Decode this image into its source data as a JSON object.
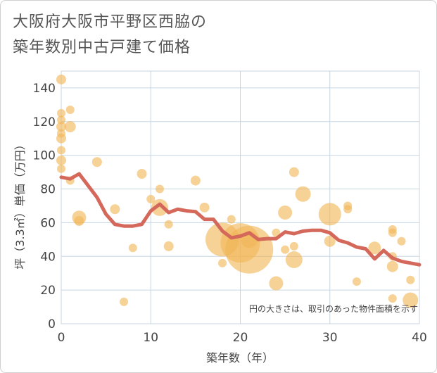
{
  "chart_data": {
    "type": "scatter",
    "title": "大阪府大阪市平野区西脇の築年数別中古戸建て価格",
    "title_lines": [
      "大阪府大阪市平野区西脇の",
      "築年数別中古戸建て価格"
    ],
    "xlabel": "築年数（年）",
    "ylabel": "坪（3.3㎡）単価（万円）",
    "xlim": [
      0,
      40
    ],
    "ylim": [
      0,
      150
    ],
    "xticks": [
      0,
      10,
      20,
      30,
      40
    ],
    "yticks": [
      0,
      20,
      40,
      60,
      80,
      100,
      120,
      140
    ],
    "grid": true,
    "annotation": "円の大きさは、取引のあった物件面積を示す",
    "bubble_color": "#f0b757",
    "line_color": "#d4685a",
    "bubbles": [
      {
        "x": 0,
        "y": 145,
        "s": 7
      },
      {
        "x": 0,
        "y": 125,
        "s": 6
      },
      {
        "x": 0,
        "y": 121,
        "s": 6
      },
      {
        "x": 0,
        "y": 117,
        "s": 7
      },
      {
        "x": 0,
        "y": 113,
        "s": 6
      },
      {
        "x": 0,
        "y": 110,
        "s": 7
      },
      {
        "x": 0,
        "y": 103,
        "s": 6
      },
      {
        "x": 0,
        "y": 97,
        "s": 7
      },
      {
        "x": 0,
        "y": 92,
        "s": 6
      },
      {
        "x": 1,
        "y": 127,
        "s": 6
      },
      {
        "x": 1,
        "y": 117,
        "s": 8
      },
      {
        "x": 1,
        "y": 85,
        "s": 6
      },
      {
        "x": 2,
        "y": 63,
        "s": 10
      },
      {
        "x": 2,
        "y": 61,
        "s": 7
      },
      {
        "x": 4,
        "y": 96,
        "s": 7
      },
      {
        "x": 6,
        "y": 68,
        "s": 7
      },
      {
        "x": 7,
        "y": 13,
        "s": 6
      },
      {
        "x": 8,
        "y": 45,
        "s": 6
      },
      {
        "x": 9,
        "y": 89,
        "s": 7
      },
      {
        "x": 10,
        "y": 74,
        "s": 6
      },
      {
        "x": 11,
        "y": 80,
        "s": 6
      },
      {
        "x": 11,
        "y": 69,
        "s": 12
      },
      {
        "x": 12,
        "y": 59,
        "s": 6
      },
      {
        "x": 12,
        "y": 46,
        "s": 7
      },
      {
        "x": 15,
        "y": 85,
        "s": 7
      },
      {
        "x": 16,
        "y": 69,
        "s": 7
      },
      {
        "x": 18,
        "y": 50,
        "s": 24
      },
      {
        "x": 18,
        "y": 36,
        "s": 6
      },
      {
        "x": 19,
        "y": 62,
        "s": 6
      },
      {
        "x": 20,
        "y": 48,
        "s": 28
      },
      {
        "x": 21,
        "y": 44,
        "s": 34
      },
      {
        "x": 21,
        "y": 50,
        "s": 12
      },
      {
        "x": 24,
        "y": 54,
        "s": 6
      },
      {
        "x": 24,
        "y": 24,
        "s": 10
      },
      {
        "x": 25,
        "y": 66,
        "s": 10
      },
      {
        "x": 25,
        "y": 44,
        "s": 6
      },
      {
        "x": 26,
        "y": 90,
        "s": 7
      },
      {
        "x": 26,
        "y": 46,
        "s": 6
      },
      {
        "x": 26,
        "y": 38,
        "s": 12
      },
      {
        "x": 27,
        "y": 77,
        "s": 11
      },
      {
        "x": 30,
        "y": 65,
        "s": 16
      },
      {
        "x": 30,
        "y": 49,
        "s": 8
      },
      {
        "x": 32,
        "y": 70,
        "s": 6
      },
      {
        "x": 32,
        "y": 68,
        "s": 6
      },
      {
        "x": 33,
        "y": 25,
        "s": 6
      },
      {
        "x": 35,
        "y": 45,
        "s": 9
      },
      {
        "x": 37,
        "y": 56,
        "s": 6
      },
      {
        "x": 37,
        "y": 54,
        "s": 6
      },
      {
        "x": 37,
        "y": 40,
        "s": 6
      },
      {
        "x": 37,
        "y": 34,
        "s": 8
      },
      {
        "x": 37,
        "y": 15,
        "s": 6
      },
      {
        "x": 38,
        "y": 49,
        "s": 6
      },
      {
        "x": 39,
        "y": 26,
        "s": 6
      },
      {
        "x": 39,
        "y": 14,
        "s": 11
      }
    ],
    "series": [
      {
        "name": "trend",
        "x": [
          0,
          1,
          2,
          3,
          4,
          5,
          6,
          7,
          8,
          9,
          10,
          11,
          12,
          13,
          14,
          15,
          16,
          17,
          18,
          19,
          20,
          21,
          22,
          23,
          24,
          25,
          26,
          27,
          28,
          29,
          30,
          31,
          32,
          33,
          34,
          35,
          36,
          37,
          38,
          39,
          40
        ],
        "values": [
          87,
          86,
          89,
          82,
          75,
          65,
          59,
          58,
          58,
          59,
          67,
          71,
          66,
          68,
          67,
          66.5,
          62,
          62,
          55,
          51,
          52,
          54,
          50,
          50.5,
          50.5,
          54.5,
          53.5,
          55,
          55.5,
          55.5,
          54,
          49.5,
          48,
          45.5,
          44.5,
          38.5,
          43.5,
          39,
          37,
          36,
          35
        ]
      }
    ]
  }
}
